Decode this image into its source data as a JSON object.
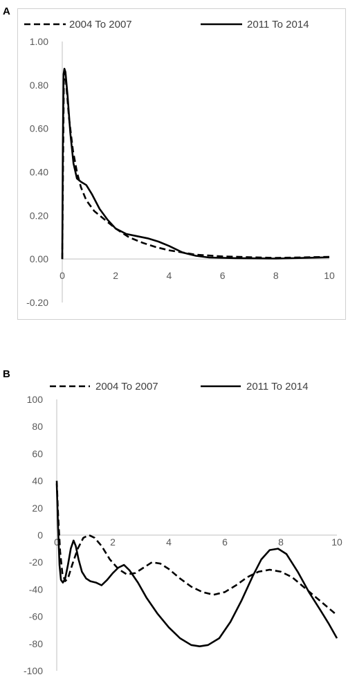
{
  "chart_data": [
    {
      "panel": "A",
      "type": "line",
      "xlim": [
        0,
        10
      ],
      "ylim": [
        -0.2,
        1.0
      ],
      "x_ticks": [
        "0",
        "2",
        "4",
        "6",
        "8",
        "10"
      ],
      "y_ticks": [
        "1.00",
        "0.80",
        "0.60",
        "0.40",
        "0.20",
        "0.00",
        "-0.20"
      ],
      "legend": "top",
      "grid": false,
      "series": [
        {
          "name": "2004 To 2007",
          "style": "dashed",
          "points": [
            [
              0,
              0
            ],
            [
              0.03,
              0.45
            ],
            [
              0.06,
              0.82
            ],
            [
              0.1,
              0.86
            ],
            [
              0.15,
              0.8
            ],
            [
              0.25,
              0.65
            ],
            [
              0.4,
              0.5
            ],
            [
              0.55,
              0.4
            ],
            [
              0.7,
              0.33
            ],
            [
              0.9,
              0.27
            ],
            [
              1.2,
              0.22
            ],
            [
              1.6,
              0.18
            ],
            [
              2.0,
              0.14
            ],
            [
              2.5,
              0.1
            ],
            [
              3.0,
              0.075
            ],
            [
              3.5,
              0.055
            ],
            [
              4.0,
              0.04
            ],
            [
              4.5,
              0.03
            ],
            [
              5.0,
              0.02
            ],
            [
              6.0,
              0.012
            ],
            [
              8.0,
              0.005
            ],
            [
              10.0,
              0.01
            ]
          ]
        },
        {
          "name": "2011 To 2014",
          "style": "solid",
          "points": [
            [
              0,
              0
            ],
            [
              0.02,
              0.5
            ],
            [
              0.05,
              0.85
            ],
            [
              0.08,
              0.875
            ],
            [
              0.12,
              0.86
            ],
            [
              0.2,
              0.75
            ],
            [
              0.3,
              0.58
            ],
            [
              0.42,
              0.44
            ],
            [
              0.55,
              0.37
            ],
            [
              0.7,
              0.355
            ],
            [
              0.9,
              0.34
            ],
            [
              1.1,
              0.3
            ],
            [
              1.4,
              0.23
            ],
            [
              1.7,
              0.18
            ],
            [
              2.0,
              0.14
            ],
            [
              2.4,
              0.115
            ],
            [
              2.8,
              0.105
            ],
            [
              3.2,
              0.095
            ],
            [
              3.6,
              0.08
            ],
            [
              4.0,
              0.06
            ],
            [
              4.5,
              0.03
            ],
            [
              5.0,
              0.015
            ],
            [
              5.5,
              0.007
            ],
            [
              6.5,
              0.004
            ],
            [
              8.0,
              0.002
            ],
            [
              10.0,
              0.008
            ]
          ]
        }
      ]
    },
    {
      "panel": "B",
      "type": "line",
      "xlim": [
        0,
        10
      ],
      "ylim": [
        -100,
        100
      ],
      "x_ticks": [
        "0",
        "2",
        "4",
        "6",
        "8",
        "10"
      ],
      "y_ticks": [
        "100",
        "80",
        "60",
        "40",
        "20",
        "0",
        "-20",
        "-40",
        "-60",
        "-80",
        "-100"
      ],
      "legend": "top",
      "grid": false,
      "series": [
        {
          "name": "2004 To 2007",
          "style": "dashed",
          "points": [
            [
              0,
              40
            ],
            [
              0.05,
              15
            ],
            [
              0.12,
              -12
            ],
            [
              0.2,
              -28
            ],
            [
              0.3,
              -34
            ],
            [
              0.4,
              -32
            ],
            [
              0.55,
              -22
            ],
            [
              0.75,
              -10
            ],
            [
              0.95,
              -2
            ],
            [
              1.15,
              0
            ],
            [
              1.35,
              -2
            ],
            [
              1.6,
              -8
            ],
            [
              1.9,
              -18
            ],
            [
              2.2,
              -25
            ],
            [
              2.5,
              -29
            ],
            [
              2.8,
              -28
            ],
            [
              3.1,
              -24
            ],
            [
              3.4,
              -20
            ],
            [
              3.7,
              -21
            ],
            [
              4.0,
              -25
            ],
            [
              4.4,
              -32
            ],
            [
              4.8,
              -38
            ],
            [
              5.2,
              -42
            ],
            [
              5.6,
              -44
            ],
            [
              6.0,
              -42
            ],
            [
              6.4,
              -37
            ],
            [
              6.8,
              -31
            ],
            [
              7.2,
              -27
            ],
            [
              7.6,
              -25.5
            ],
            [
              8.0,
              -27
            ],
            [
              8.4,
              -31
            ],
            [
              8.8,
              -38
            ],
            [
              9.2,
              -45
            ],
            [
              9.6,
              -52
            ],
            [
              10.0,
              -59
            ]
          ]
        },
        {
          "name": "2011 To 2014",
          "style": "solid",
          "points": [
            [
              0,
              38
            ],
            [
              0.05,
              5
            ],
            [
              0.1,
              -22
            ],
            [
              0.15,
              -33
            ],
            [
              0.22,
              -35
            ],
            [
              0.3,
              -32
            ],
            [
              0.4,
              -22
            ],
            [
              0.5,
              -10
            ],
            [
              0.6,
              -4
            ],
            [
              0.68,
              -8
            ],
            [
              0.78,
              -18
            ],
            [
              0.9,
              -27
            ],
            [
              1.05,
              -32
            ],
            [
              1.2,
              -34
            ],
            [
              1.4,
              -35
            ],
            [
              1.6,
              -37
            ],
            [
              1.8,
              -33
            ],
            [
              2.0,
              -28
            ],
            [
              2.2,
              -24
            ],
            [
              2.4,
              -22
            ],
            [
              2.6,
              -26
            ],
            [
              2.9,
              -35
            ],
            [
              3.2,
              -46
            ],
            [
              3.6,
              -58
            ],
            [
              4.0,
              -68
            ],
            [
              4.4,
              -76
            ],
            [
              4.8,
              -81
            ],
            [
              5.1,
              -82
            ],
            [
              5.4,
              -81
            ],
            [
              5.8,
              -76
            ],
            [
              6.2,
              -64
            ],
            [
              6.6,
              -48
            ],
            [
              7.0,
              -30
            ],
            [
              7.3,
              -18
            ],
            [
              7.6,
              -11
            ],
            [
              7.9,
              -10
            ],
            [
              8.2,
              -14
            ],
            [
              8.6,
              -27
            ],
            [
              9.0,
              -42
            ],
            [
              9.4,
              -55
            ],
            [
              9.7,
              -65
            ],
            [
              10.0,
              -76
            ]
          ]
        }
      ]
    }
  ]
}
